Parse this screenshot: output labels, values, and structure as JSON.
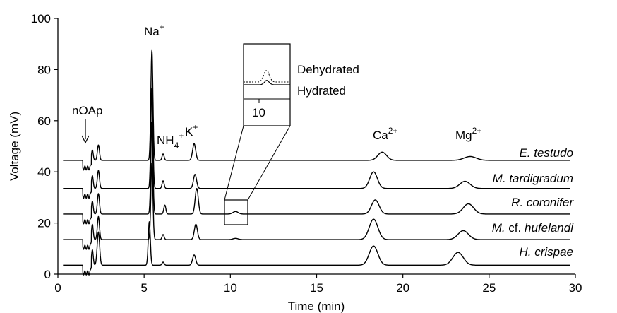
{
  "chart_data": {
    "type": "line",
    "xlabel": "Time (min)",
    "ylabel": "Voltage (mV)",
    "xlim": [
      0,
      30
    ],
    "ylim": [
      0,
      100
    ],
    "x_ticks": [
      "0",
      "5",
      "10",
      "15",
      "20",
      "25",
      "30"
    ],
    "y_ticks": [
      "0",
      "20",
      "40",
      "60",
      "80",
      "100"
    ],
    "grid": false,
    "legend": "none",
    "line_color": "#000000",
    "series": [
      {
        "name": "E. testudo",
        "baseline": 44.5,
        "label_parts": [
          {
            "text": "E. testudo",
            "italic": true
          }
        ],
        "peaks": [
          {
            "x": 2.0,
            "h": 4,
            "w": 0.05
          },
          {
            "x": 2.35,
            "h": 6,
            "w": 0.06
          },
          {
            "x": 5.45,
            "h": 43,
            "w": 0.06
          },
          {
            "x": 6.1,
            "h": 2.5,
            "w": 0.06
          },
          {
            "x": 7.9,
            "h": 6.5,
            "w": 0.09
          },
          {
            "x": 18.8,
            "h": 3.2,
            "w": 0.25
          },
          {
            "x": 23.9,
            "h": 1.5,
            "w": 0.35
          }
        ]
      },
      {
        "name": "M. tardigradum",
        "baseline": 33.5,
        "label_parts": [
          {
            "text": "M. tardigradum",
            "italic": true
          }
        ],
        "peaks": [
          {
            "x": 2.0,
            "h": 5,
            "w": 0.05
          },
          {
            "x": 2.35,
            "h": 7,
            "w": 0.06
          },
          {
            "x": 5.45,
            "h": 39,
            "w": 0.06
          },
          {
            "x": 6.1,
            "h": 3,
            "w": 0.06
          },
          {
            "x": 7.95,
            "h": 5.5,
            "w": 0.09
          },
          {
            "x": 18.3,
            "h": 6.5,
            "w": 0.22
          },
          {
            "x": 23.6,
            "h": 2.8,
            "w": 0.3
          }
        ]
      },
      {
        "name": "R. coronifer",
        "baseline": 23.5,
        "label_parts": [
          {
            "text": "R. coronifer",
            "italic": true
          }
        ],
        "peaks": [
          {
            "x": 2.0,
            "h": 5,
            "w": 0.05
          },
          {
            "x": 2.35,
            "h": 8,
            "w": 0.06
          },
          {
            "x": 5.45,
            "h": 36,
            "w": 0.06
          },
          {
            "x": 6.2,
            "h": 3.5,
            "w": 0.06
          },
          {
            "x": 8.05,
            "h": 10,
            "w": 0.09
          },
          {
            "x": 10.3,
            "h": 1.0,
            "w": 0.15
          },
          {
            "x": 18.4,
            "h": 5.5,
            "w": 0.22
          },
          {
            "x": 23.8,
            "h": 4,
            "w": 0.3
          }
        ]
      },
      {
        "name": "M. cf. hufelandi",
        "baseline": 13.5,
        "label_parts": [
          {
            "text": "M.",
            "italic": true
          },
          {
            "text": " cf. ",
            "italic": false
          },
          {
            "text": "hufelandi",
            "italic": true
          }
        ],
        "peaks": [
          {
            "x": 2.0,
            "h": 6,
            "w": 0.05
          },
          {
            "x": 2.35,
            "h": 9,
            "w": 0.06
          },
          {
            "x": 5.45,
            "h": 30,
            "w": 0.06
          },
          {
            "x": 6.1,
            "h": 2.0,
            "w": 0.06
          },
          {
            "x": 8.0,
            "h": 6,
            "w": 0.09
          },
          {
            "x": 10.3,
            "h": 0.5,
            "w": 0.15
          },
          {
            "x": 18.3,
            "h": 8,
            "w": 0.25
          },
          {
            "x": 23.5,
            "h": 3.5,
            "w": 0.3
          }
        ]
      },
      {
        "name": "H. crispae",
        "baseline": 3.5,
        "label_parts": [
          {
            "text": "H. crispae",
            "italic": true
          }
        ],
        "peaks": [
          {
            "x": 2.0,
            "h": 6,
            "w": 0.05
          },
          {
            "x": 2.35,
            "h": 13,
            "w": 0.07
          },
          {
            "x": 5.3,
            "h": 17,
            "w": 0.06
          },
          {
            "x": 6.1,
            "h": 1.2,
            "w": 0.06
          },
          {
            "x": 7.9,
            "h": 4,
            "w": 0.09
          },
          {
            "x": 18.3,
            "h": 7.5,
            "w": 0.25
          },
          {
            "x": 23.2,
            "h": 5,
            "w": 0.3
          }
        ]
      }
    ],
    "ion_labels": [
      {
        "base": "Na",
        "sup": "+",
        "sub": ""
      },
      {
        "base": "NH",
        "sub": "4",
        "sup": "+"
      },
      {
        "base": "K",
        "sup": "+",
        "sub": ""
      },
      {
        "base": "Ca",
        "sup": "2+",
        "sub": ""
      },
      {
        "base": "Mg",
        "sup": "2+",
        "sub": ""
      }
    ],
    "annotation": {
      "text": "nOAp"
    },
    "inset": {
      "labels": [
        "Dehydrated",
        "Hydrated"
      ],
      "tick": "10",
      "source_box": {
        "x": [
          9.8,
          11.0
        ],
        "y": [
          19.5,
          29.5
        ]
      }
    }
  }
}
